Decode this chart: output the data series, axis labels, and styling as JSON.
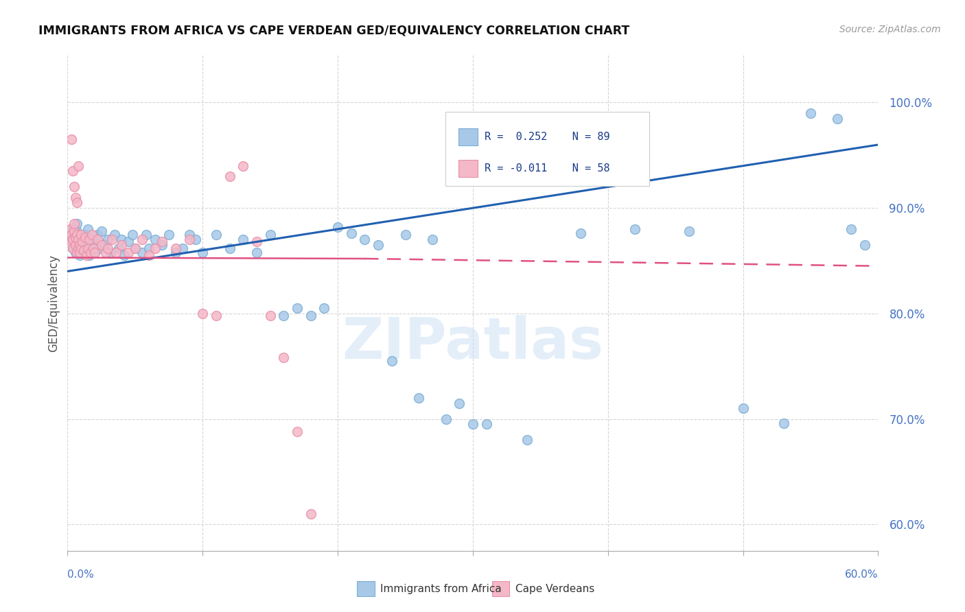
{
  "title": "IMMIGRANTS FROM AFRICA VS CAPE VERDEAN GED/EQUIVALENCY CORRELATION CHART",
  "source": "Source: ZipAtlas.com",
  "ylabel": "GED/Equivalency",
  "y_ticks": [
    0.6,
    0.7,
    0.8,
    0.9,
    1.0
  ],
  "y_tick_labels": [
    "60.0%",
    "70.0%",
    "80.0%",
    "90.0%",
    "100.0%"
  ],
  "x_range": [
    0.0,
    0.6
  ],
  "y_range": [
    0.575,
    1.045
  ],
  "blue_color": "#a8c8e8",
  "blue_edge_color": "#7aafd4",
  "pink_color": "#f4b8c8",
  "pink_edge_color": "#e890a8",
  "blue_line_color": "#2060b0",
  "pink_line_color": "#e05080",
  "label_blue": "Immigrants from Africa",
  "label_pink": "Cape Verdeans",
  "watermark": "ZIPatlas",
  "blue_line_x0": 0.0,
  "blue_line_y0": 0.84,
  "blue_line_x1": 0.6,
  "blue_line_y1": 0.96,
  "pink_line_x0": 0.0,
  "pink_line_y0": 0.853,
  "pink_line_x1": 0.6,
  "pink_line_y1": 0.845,
  "blue_x": [
    0.002,
    0.003,
    0.004,
    0.004,
    0.005,
    0.005,
    0.005,
    0.006,
    0.006,
    0.007,
    0.007,
    0.007,
    0.008,
    0.008,
    0.009,
    0.01,
    0.01,
    0.011,
    0.011,
    0.012,
    0.012,
    0.013,
    0.013,
    0.014,
    0.015,
    0.015,
    0.016,
    0.017,
    0.018,
    0.019,
    0.02,
    0.022,
    0.023,
    0.025,
    0.027,
    0.03,
    0.032,
    0.035,
    0.038,
    0.04,
    0.042,
    0.045,
    0.048,
    0.05,
    0.055,
    0.058,
    0.06,
    0.065,
    0.07,
    0.075,
    0.08,
    0.085,
    0.09,
    0.095,
    0.1,
    0.11,
    0.12,
    0.13,
    0.14,
    0.15,
    0.16,
    0.17,
    0.18,
    0.19,
    0.2,
    0.21,
    0.22,
    0.23,
    0.25,
    0.27,
    0.29,
    0.31,
    0.33,
    0.35,
    0.38,
    0.42,
    0.46,
    0.5,
    0.53,
    0.55,
    0.57,
    0.58,
    0.59,
    0.34,
    0.26,
    0.24,
    0.28,
    0.3,
    0.36
  ],
  "blue_y": [
    0.875,
    0.88,
    0.87,
    0.862,
    0.868,
    0.875,
    0.88,
    0.858,
    0.865,
    0.872,
    0.878,
    0.885,
    0.862,
    0.87,
    0.855,
    0.868,
    0.874,
    0.86,
    0.872,
    0.865,
    0.87,
    0.858,
    0.875,
    0.862,
    0.868,
    0.88,
    0.855,
    0.862,
    0.87,
    0.865,
    0.858,
    0.875,
    0.862,
    0.878,
    0.865,
    0.87,
    0.858,
    0.875,
    0.862,
    0.87,
    0.855,
    0.868,
    0.875,
    0.862,
    0.858,
    0.875,
    0.862,
    0.87,
    0.865,
    0.875,
    0.858,
    0.862,
    0.875,
    0.87,
    0.858,
    0.875,
    0.862,
    0.87,
    0.858,
    0.875,
    0.798,
    0.805,
    0.798,
    0.805,
    0.882,
    0.876,
    0.87,
    0.865,
    0.875,
    0.87,
    0.715,
    0.695,
    0.95,
    0.958,
    0.876,
    0.88,
    0.878,
    0.71,
    0.696,
    0.99,
    0.985,
    0.88,
    0.865,
    0.68,
    0.72,
    0.755,
    0.7,
    0.695,
    0.958
  ],
  "pink_x": [
    0.002,
    0.003,
    0.003,
    0.004,
    0.004,
    0.005,
    0.005,
    0.006,
    0.006,
    0.007,
    0.007,
    0.008,
    0.008,
    0.009,
    0.009,
    0.01,
    0.01,
    0.011,
    0.012,
    0.013,
    0.014,
    0.015,
    0.016,
    0.017,
    0.018,
    0.019,
    0.02,
    0.022,
    0.025,
    0.028,
    0.03,
    0.033,
    0.036,
    0.04,
    0.045,
    0.05,
    0.055,
    0.06,
    0.065,
    0.07,
    0.08,
    0.09,
    0.1,
    0.11,
    0.12,
    0.13,
    0.14,
    0.15,
    0.16,
    0.17,
    0.18,
    0.003,
    0.004,
    0.005,
    0.006,
    0.007,
    0.008
  ],
  "pink_y": [
    0.88,
    0.875,
    0.868,
    0.87,
    0.862,
    0.878,
    0.885,
    0.865,
    0.872,
    0.858,
    0.875,
    0.862,
    0.87,
    0.865,
    0.858,
    0.875,
    0.862,
    0.868,
    0.86,
    0.872,
    0.855,
    0.862,
    0.87,
    0.858,
    0.875,
    0.862,
    0.858,
    0.87,
    0.865,
    0.858,
    0.862,
    0.87,
    0.858,
    0.865,
    0.858,
    0.862,
    0.87,
    0.855,
    0.862,
    0.868,
    0.862,
    0.87,
    0.8,
    0.798,
    0.93,
    0.94,
    0.868,
    0.798,
    0.758,
    0.688,
    0.61,
    0.965,
    0.935,
    0.92,
    0.91,
    0.905,
    0.94
  ]
}
